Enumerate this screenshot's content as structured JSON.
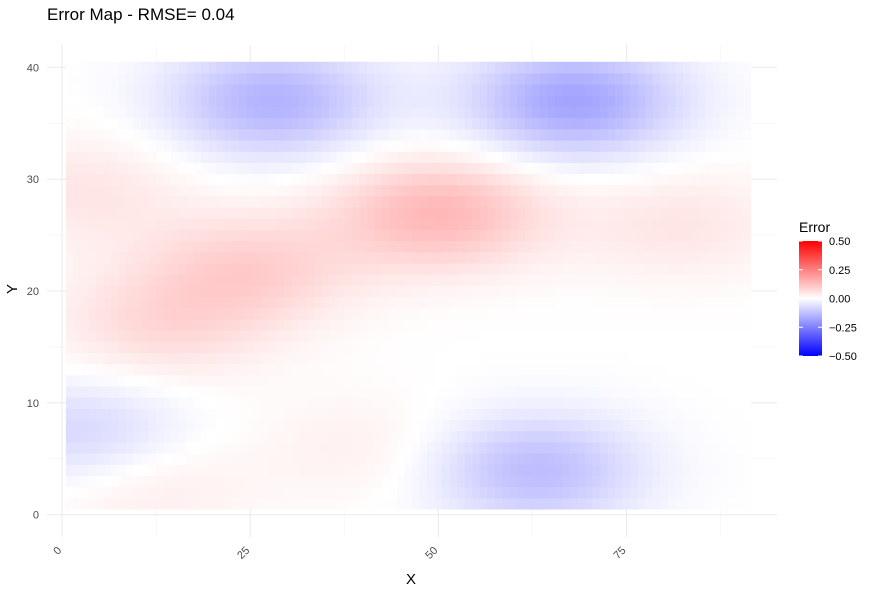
{
  "chart_data": {
    "type": "heatmap",
    "title": "Error Map - RMSE= 0.04",
    "xlabel": "X",
    "ylabel": "Y",
    "xlim": [
      -2,
      95
    ],
    "ylim": [
      -2,
      42
    ],
    "data_extent": {
      "x": [
        0.5,
        91
      ],
      "y": [
        0.5,
        40.5
      ]
    },
    "x_ticks": [
      0,
      25,
      50,
      75
    ],
    "x_tick_labels": [
      "0",
      "25",
      "50",
      "75"
    ],
    "y_ticks": [
      0,
      10,
      20,
      30,
      40
    ],
    "y_tick_labels": [
      "0",
      "10",
      "20",
      "30",
      "40"
    ],
    "grid": true,
    "legend": {
      "title": "Error",
      "position": "right",
      "limits": [
        -0.5,
        0.5
      ],
      "breaks": [
        0.5,
        0.25,
        0.0,
        -0.25,
        -0.5
      ],
      "labels": [
        "0.50",
        "0.25",
        "0.00",
        "−0.25",
        "−0.50"
      ],
      "low_color": "#0000ff",
      "mid_color": "#ffffff",
      "high_color": "#ff0000"
    },
    "error_features": [
      {
        "x": 28,
        "y": 37,
        "amplitude": -0.15
      },
      {
        "x": 68,
        "y": 37,
        "amplitude": -0.18
      },
      {
        "x": 50,
        "y": 27,
        "amplitude": 0.14
      },
      {
        "x": 25,
        "y": 22,
        "amplitude": 0.09
      },
      {
        "x": 13,
        "y": 17,
        "amplitude": 0.07
      },
      {
        "x": 82,
        "y": 26,
        "amplitude": 0.05
      },
      {
        "x": 3,
        "y": 29,
        "amplitude": 0.05
      },
      {
        "x": 3,
        "y": 7,
        "amplitude": -0.09
      },
      {
        "x": 63,
        "y": 4,
        "amplitude": -0.13
      },
      {
        "x": 10,
        "y": 3,
        "amplitude": 0.05
      },
      {
        "x": 40,
        "y": 6,
        "amplitude": 0.03
      }
    ]
  }
}
